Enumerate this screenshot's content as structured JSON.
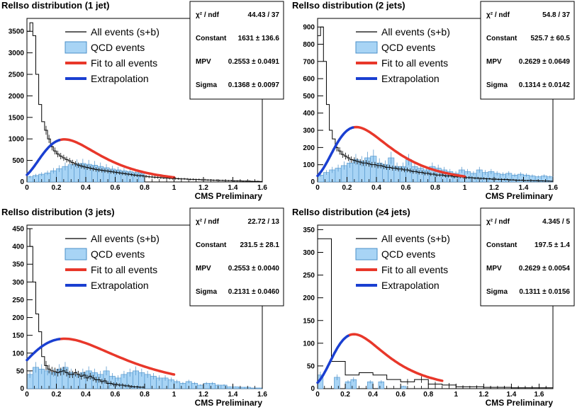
{
  "chart_data": [
    {
      "type": "bar",
      "title": "RelIso distribution (1 jet)",
      "xlabel": "CMS Preliminary",
      "xlim": [
        0,
        1.6
      ],
      "ylim": [
        0,
        3800
      ],
      "x_ticks": [
        "0",
        "0.2",
        "0.4",
        "0.6",
        "0.8",
        "1",
        "1.2",
        "1.4",
        "1.6"
      ],
      "y_ticks": [
        {
          "v": 500,
          "l": "500"
        },
        {
          "v": 1000,
          "l": "1000"
        },
        {
          "v": 1500,
          "l": "1500"
        },
        {
          "v": 2000,
          "l": "2000"
        },
        {
          "v": 2500,
          "l": "2500"
        },
        {
          "v": 3000,
          "l": "3000"
        },
        {
          "v": 3500,
          "l": "3500"
        }
      ],
      "legend": [
        "All events (s+b)",
        "QCD events",
        "Fit to all events",
        "Extrapolation"
      ],
      "stats": {
        "chi2_label": "χ² / ndf",
        "chi2_value": "44.43 / 37",
        "constant_label": "Constant",
        "constant_value": "1631 ± 136.6",
        "mpv_label": "MPV",
        "mpv_value": "0.2553 ± 0.0491",
        "sigma_label": "Sigma",
        "sigma_value": "0.1368 ± 0.0097"
      },
      "all_events": [
        3500,
        3700,
        3400,
        2500,
        1800,
        1400,
        1200,
        1000,
        820,
        720,
        650,
        600,
        560,
        520,
        490,
        450,
        420,
        390,
        370,
        350,
        335,
        320,
        305,
        290,
        280,
        270,
        260,
        250,
        240,
        230,
        220,
        210,
        200,
        190,
        180,
        170,
        160,
        150,
        145,
        140,
        130,
        120,
        115,
        110,
        105,
        100,
        95,
        90,
        85,
        80,
        80,
        75,
        70,
        70,
        65,
        60,
        60,
        55,
        55,
        50,
        50,
        45,
        45,
        40,
        40,
        35,
        35,
        30,
        30,
        30,
        25,
        25,
        25,
        20,
        20,
        20,
        15,
        15,
        15,
        10
      ],
      "qcd": [
        120,
        150,
        180,
        210,
        260,
        310,
        360,
        400,
        420,
        430,
        410,
        390,
        360,
        330,
        300,
        280,
        260,
        240,
        220,
        210
      ],
      "qcd_start": 0.0,
      "fit": {
        "x": [
          0.22,
          1.0
        ],
        "constant": 1631,
        "mpv": 0.2553,
        "sigma": 0.1368
      },
      "extrapolation": {
        "x": [
          0.0,
          0.22
        ]
      }
    },
    {
      "type": "bar",
      "title": "RelIso distribution (2 jets)",
      "xlabel": "CMS Preliminary",
      "xlim": [
        0,
        1.6
      ],
      "ylim": [
        0,
        950
      ],
      "x_ticks": [
        "0",
        "0.2",
        "0.4",
        "0.6",
        "0.8",
        "1",
        "1.2",
        "1.4",
        "1.6"
      ],
      "y_ticks": [
        {
          "v": 100,
          "l": "100"
        },
        {
          "v": 200,
          "l": "200"
        },
        {
          "v": 300,
          "l": "300"
        },
        {
          "v": 400,
          "l": "400"
        },
        {
          "v": 500,
          "l": "500"
        },
        {
          "v": 600,
          "l": "600"
        },
        {
          "v": 700,
          "l": "700"
        },
        {
          "v": 800,
          "l": "800"
        },
        {
          "v": 900,
          "l": "900"
        }
      ],
      "legend": [
        "All events (s+b)",
        "QCD events",
        "Fit to all events",
        "Extrapolation"
      ],
      "stats": {
        "chi2_label": "χ² / ndf",
        "chi2_value": "54.8 / 37",
        "constant_label": "Constant",
        "constant_value": "525.7 ± 60.5",
        "mpv_label": "MPV",
        "mpv_value": "0.2629 ± 0.0649",
        "sigma_label": "Sigma",
        "sigma_value": "0.1314 ± 0.0142"
      },
      "all_events": [
        850,
        900,
        700,
        450,
        300,
        250,
        200,
        180,
        160,
        150,
        140,
        130,
        125,
        120,
        115,
        110,
        110,
        105,
        100,
        100,
        95,
        95,
        90,
        85,
        85,
        80,
        80,
        75,
        75,
        70,
        70,
        65,
        60,
        60,
        55,
        55,
        50,
        50,
        45,
        45,
        40,
        40,
        40,
        35,
        35,
        35,
        30,
        30,
        30,
        28,
        25,
        25,
        24,
        22,
        22,
        20,
        20,
        18,
        18,
        16,
        16,
        15,
        15,
        14,
        14,
        12,
        12,
        10,
        10,
        10,
        8,
        8,
        8,
        7,
        7,
        6,
        6,
        5,
        5,
        4
      ],
      "qcd": [
        40,
        55,
        70,
        80,
        95,
        110,
        130,
        120,
        140,
        150,
        110,
        100,
        140,
        90,
        90,
        130,
        90,
        80,
        70,
        90,
        80,
        70,
        60,
        50,
        70,
        60,
        50,
        70,
        55,
        60,
        50,
        45,
        50,
        40,
        45,
        40,
        35,
        30,
        35,
        30
      ],
      "qcd_start": 0.0,
      "fit": {
        "x": [
          0.24,
          1.0
        ],
        "constant": 525.7,
        "mpv": 0.2629,
        "sigma": 0.1314
      },
      "extrapolation": {
        "x": [
          0.0,
          0.24
        ]
      }
    },
    {
      "type": "bar",
      "title": "RelIso distribution (3 jets)",
      "xlabel": "CMS Preliminary",
      "xlim": [
        0,
        1.6
      ],
      "ylim": [
        0,
        460
      ],
      "x_ticks": [
        "0",
        "0.2",
        "0.4",
        "0.6",
        "0.8",
        "1",
        "1.2",
        "1.4",
        "1.6"
      ],
      "y_ticks": [
        {
          "v": 50,
          "l": "50"
        },
        {
          "v": 100,
          "l": "100"
        },
        {
          "v": 150,
          "l": "150"
        },
        {
          "v": 200,
          "l": "200"
        },
        {
          "v": 250,
          "l": "250"
        },
        {
          "v": 300,
          "l": "300"
        },
        {
          "v": 350,
          "l": "350"
        },
        {
          "v": 400,
          "l": "400"
        },
        {
          "v": 450,
          "l": "450"
        }
      ],
      "legend": [
        "All events (s+b)",
        "QCD events",
        "Fit to all events",
        "Extrapolation"
      ],
      "stats": {
        "chi2_label": "χ² / ndf",
        "chi2_value": "22.72 / 13",
        "constant_label": "Constant",
        "constant_value": "231.5 ± 28.1",
        "mpv_label": "MPV",
        "mpv_value": "0.2553 ± 0.0040",
        "sigma_label": "Sigma",
        "sigma_value": "0.2131 ± 0.0460"
      },
      "all_events": [
        450,
        400,
        300,
        210,
        160,
        90,
        65,
        55,
        50,
        48,
        45,
        48,
        50,
        45,
        40,
        40,
        45,
        40,
        35,
        38,
        30,
        35,
        30,
        25,
        25,
        20,
        22,
        15,
        15,
        12,
        12,
        10,
        10,
        8,
        8,
        6,
        5,
        5,
        4,
        4
      ],
      "qcd": [
        40,
        60,
        55,
        50,
        45,
        55,
        60,
        45,
        40,
        45,
        50,
        45,
        40,
        50,
        35,
        30,
        40,
        45,
        50,
        45,
        40,
        35,
        30,
        30,
        25,
        20,
        15,
        20,
        15,
        10,
        15,
        15,
        10,
        10,
        5,
        5,
        4,
        4,
        2,
        2
      ],
      "qcd_start": 0.0,
      "fit": {
        "x": [
          0.22,
          1.0
        ],
        "constant": 231.5,
        "mpv": 0.2553,
        "sigma": 0.2131
      },
      "extrapolation": {
        "x": [
          0.0,
          0.22
        ]
      }
    },
    {
      "type": "bar",
      "title": "RelIso distribution (≥4 jets)",
      "xlabel": "CMS Preliminary",
      "xlim": [
        0,
        1.7
      ],
      "ylim": [
        0,
        360
      ],
      "x_ticks": [
        "0",
        "0.2",
        "0.4",
        "0.6",
        "0.8",
        "1",
        "1.2",
        "1.4",
        "1.6"
      ],
      "y_ticks": [
        {
          "v": 50,
          "l": "50"
        },
        {
          "v": 100,
          "l": "100"
        },
        {
          "v": 150,
          "l": "150"
        },
        {
          "v": 200,
          "l": "200"
        },
        {
          "v": 250,
          "l": "250"
        },
        {
          "v": 300,
          "l": "300"
        },
        {
          "v": 350,
          "l": "350"
        }
      ],
      "legend": [
        "All events (s+b)",
        "QCD events",
        "Fit to all events",
        "Extrapolation"
      ],
      "stats": {
        "chi2_label": "χ² / ndf",
        "chi2_value": "4.345 / 5",
        "constant_label": "Constant",
        "constant_value": "197.5 ± 1.4",
        "mpv_label": "MPV",
        "mpv_value": "0.2629 ± 0.0054",
        "sigma_label": "Sigma",
        "sigma_value": "0.1311 ± 0.0156"
      },
      "all_events": [
        330,
        60,
        30,
        35,
        30,
        20,
        15,
        20,
        10,
        8,
        4,
        4,
        3,
        3,
        2,
        2,
        2
      ],
      "qcd": [
        30,
        0,
        0,
        25,
        0,
        15,
        20,
        0,
        0,
        15,
        0,
        15,
        0,
        0,
        0,
        5,
        0
      ],
      "qcd_start": 0.0,
      "fit": {
        "x": [
          0.22,
          0.9
        ],
        "constant": 197.5,
        "mpv": 0.2629,
        "sigma": 0.1311
      },
      "extrapolation": {
        "x": [
          0.0,
          0.22
        ]
      }
    }
  ]
}
